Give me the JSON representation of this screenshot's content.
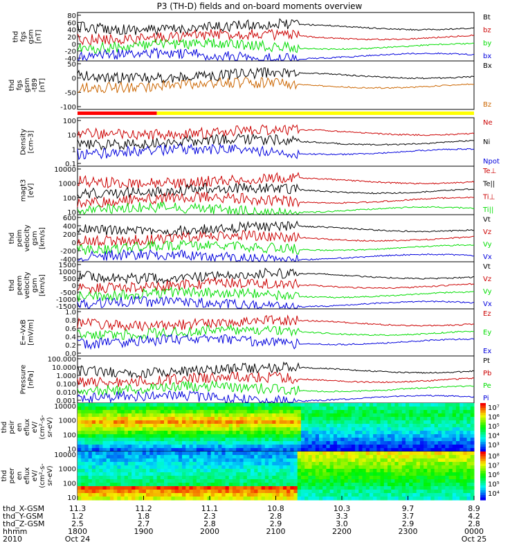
{
  "title": "P3 (TH-D) fields and on-board moments overview",
  "colors": {
    "black": "#000000",
    "red": "#cc0000",
    "green": "#00dd00",
    "blue": "#0000dd",
    "orange": "#cc6600",
    "yellow": "#ffff00"
  },
  "chart_data": [
    {
      "type": "line",
      "ylabel": [
        "thd",
        "fgs",
        "gsm",
        "[nT]"
      ],
      "yticks": [
        "80",
        "60",
        "40",
        "20",
        "0",
        "-20",
        "-40"
      ],
      "ylim": [
        -45,
        85
      ],
      "legend": [
        {
          "label": "Bt",
          "color": "black"
        },
        {
          "label": "bz",
          "color": "red"
        },
        {
          "label": "by",
          "color": "green"
        },
        {
          "label": "bx",
          "color": "blue"
        }
      ]
    },
    {
      "type": "line",
      "ylabel": [
        "thd",
        "fgs",
        "gsm",
        "-t89",
        "[nT]"
      ],
      "yticks": [
        "50",
        "0",
        "-50",
        "-100"
      ],
      "ylim": [
        -120,
        55
      ],
      "legend": [
        {
          "label": "Bx",
          "color": "black"
        },
        {
          "label": "Bz",
          "color": "orange"
        }
      ]
    },
    {
      "type": "bar",
      "description_colors": [
        "red",
        "yellow"
      ]
    },
    {
      "type": "line",
      "ylabel": [
        "Density",
        "[cm-3]"
      ],
      "yticks": [
        "100",
        "10",
        "1",
        "0.1"
      ],
      "scale": "log",
      "legend": [
        {
          "label": "Ne",
          "color": "red"
        },
        {
          "label": "Ni",
          "color": "black"
        },
        {
          "label": "Npot",
          "color": "blue"
        }
      ]
    },
    {
      "type": "line",
      "ylabel": [
        "magt3",
        "[eV]"
      ],
      "yticks": [
        "10000",
        "1000",
        "100",
        "10"
      ],
      "scale": "log",
      "legend": [
        {
          "label": "Te⊥",
          "color": "red"
        },
        {
          "label": "Te||",
          "color": "black"
        },
        {
          "label": "Ti⊥",
          "color": "red"
        },
        {
          "label": "Ti||",
          "color": "green"
        }
      ]
    },
    {
      "type": "line",
      "ylabel": [
        "thd",
        "peim",
        "velocity",
        "gsm",
        "[km/s]"
      ],
      "yticks": [
        "600",
        "400",
        "200",
        "0",
        "-200",
        "-400"
      ],
      "ylim": [
        -420,
        620
      ],
      "legend": [
        {
          "label": "Vt",
          "color": "black"
        },
        {
          "label": "Vz",
          "color": "red"
        },
        {
          "label": "Vy",
          "color": "green"
        },
        {
          "label": "Vx",
          "color": "blue"
        }
      ]
    },
    {
      "type": "line",
      "ylabel": [
        "thd",
        "peem",
        "velocity",
        "gsm",
        "[km/s]"
      ],
      "yticks": [
        "1500",
        "1000",
        "500",
        "0",
        "-500",
        "-1000",
        "-1500"
      ],
      "ylim": [
        -1550,
        1550
      ],
      "legend": [
        {
          "label": "Vt",
          "color": "black"
        },
        {
          "label": "Vz",
          "color": "red"
        },
        {
          "label": "Vy",
          "color": "green"
        },
        {
          "label": "Vx",
          "color": "blue"
        }
      ]
    },
    {
      "type": "line",
      "ylabel": [
        "E=-VxB",
        "[mV/m]"
      ],
      "yticks": [
        "1.0",
        "0.8",
        "0.6",
        "0.4",
        "0.2",
        "0.0"
      ],
      "ylim": [
        0,
        1
      ],
      "legend": [
        {
          "label": "Ez",
          "color": "red"
        },
        {
          "label": "Ey",
          "color": "green"
        },
        {
          "label": "Ex",
          "color": "blue"
        }
      ]
    },
    {
      "type": "line",
      "ylabel": [
        "Pressure",
        "[nPa]"
      ],
      "yticks": [
        "100.000",
        "10.000",
        "1.000",
        "0.100",
        "0.010",
        "0.001"
      ],
      "scale": "log",
      "legend": [
        {
          "label": "Pt",
          "color": "black"
        },
        {
          "label": "Pb",
          "color": "red"
        },
        {
          "label": "Pe",
          "color": "green"
        },
        {
          "label": "Pi",
          "color": "blue"
        }
      ]
    },
    {
      "type": "heatmap",
      "ylabel": [
        "thd",
        "peir",
        "en",
        "eflux",
        "eV/",
        "(cm²-s-",
        "sr-eV)"
      ],
      "yticks": [
        "10000",
        "1000",
        "100",
        "10"
      ],
      "colorbar_ticks": [
        "10⁷",
        "10⁶",
        "10⁵",
        "10⁴",
        "10³"
      ]
    },
    {
      "type": "heatmap",
      "ylabel": [
        "thd",
        "peer",
        "en",
        "eflux",
        "eV/",
        "(cm²-s-",
        "sr-eV)"
      ],
      "yticks": [
        "10000",
        "1000",
        "100",
        "10"
      ],
      "colorbar_ticks": [
        "10⁸",
        "10⁷",
        "10⁶",
        "10⁵",
        "10⁴"
      ]
    }
  ],
  "x_axis": {
    "row_labels": [
      "thd_X-GSM",
      "thd_Y-GSM",
      "thd_Z-GSM",
      "hhmm",
      "2010"
    ],
    "ticks": [
      {
        "vals": [
          "11.3",
          "1.2",
          "2.5",
          "1800",
          "Oct 24"
        ]
      },
      {
        "vals": [
          "11.2",
          "1.8",
          "2.7",
          "1900",
          ""
        ]
      },
      {
        "vals": [
          "11.1",
          "2.3",
          "2.8",
          "2000",
          ""
        ]
      },
      {
        "vals": [
          "10.8",
          "2.8",
          "2.9",
          "2100",
          ""
        ]
      },
      {
        "vals": [
          "10.3",
          "3.3",
          "3.0",
          "2200",
          ""
        ]
      },
      {
        "vals": [
          "9.7",
          "3.7",
          "2.9",
          "2300",
          ""
        ]
      },
      {
        "vals": [
          "8.9",
          "4.2",
          "2.8",
          "0000",
          "Oct 25"
        ]
      }
    ]
  }
}
